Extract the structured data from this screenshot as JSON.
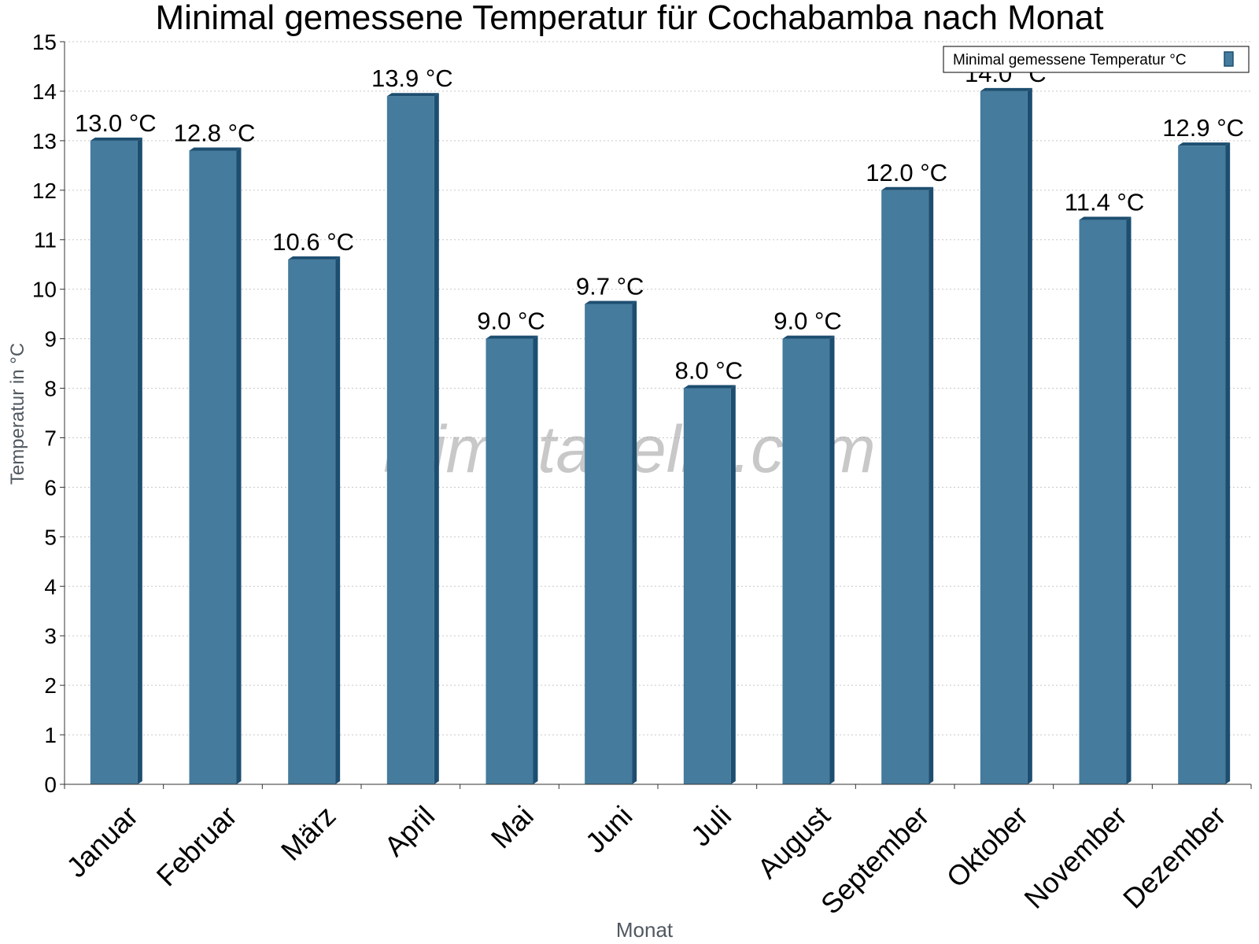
{
  "chart_data": {
    "type": "bar",
    "title": "Minimal gemessene Temperatur für Cochabamba nach Monat",
    "xlabel": "Monat",
    "ylabel": "Temperatur in °C",
    "categories": [
      "Januar",
      "Februar",
      "März",
      "April",
      "Mai",
      "Juni",
      "Juli",
      "August",
      "September",
      "Oktober",
      "November",
      "Dezember"
    ],
    "series": [
      {
        "name": "Minimal gemessene Temperatur °C",
        "values": [
          13.0,
          12.8,
          10.6,
          13.9,
          9.0,
          9.7,
          8.0,
          9.0,
          12.0,
          14.0,
          11.4,
          12.9
        ],
        "labels": [
          "13.0 °C",
          "12.8 °C",
          "10.6 °C",
          "13.9 °C",
          "9.0 °C",
          "9.7 °C",
          "8.0 °C",
          "9.0 °C",
          "12.0 °C",
          "14.0 °C",
          "11.4 °C",
          "12.9 °C"
        ]
      }
    ],
    "ylim": [
      0,
      15
    ],
    "yticks": [
      "0",
      "1",
      "2",
      "3",
      "4",
      "5",
      "6",
      "7",
      "8",
      "9",
      "10",
      "11",
      "12",
      "13",
      "14",
      "15"
    ],
    "grid": true,
    "legend_position": "top-right",
    "watermark": "klimatabelle.com",
    "colors": {
      "bar": "#457b9d",
      "bar_dark": "#1d4e70",
      "grid": "#c8c8c8",
      "axis": "#333333"
    }
  }
}
